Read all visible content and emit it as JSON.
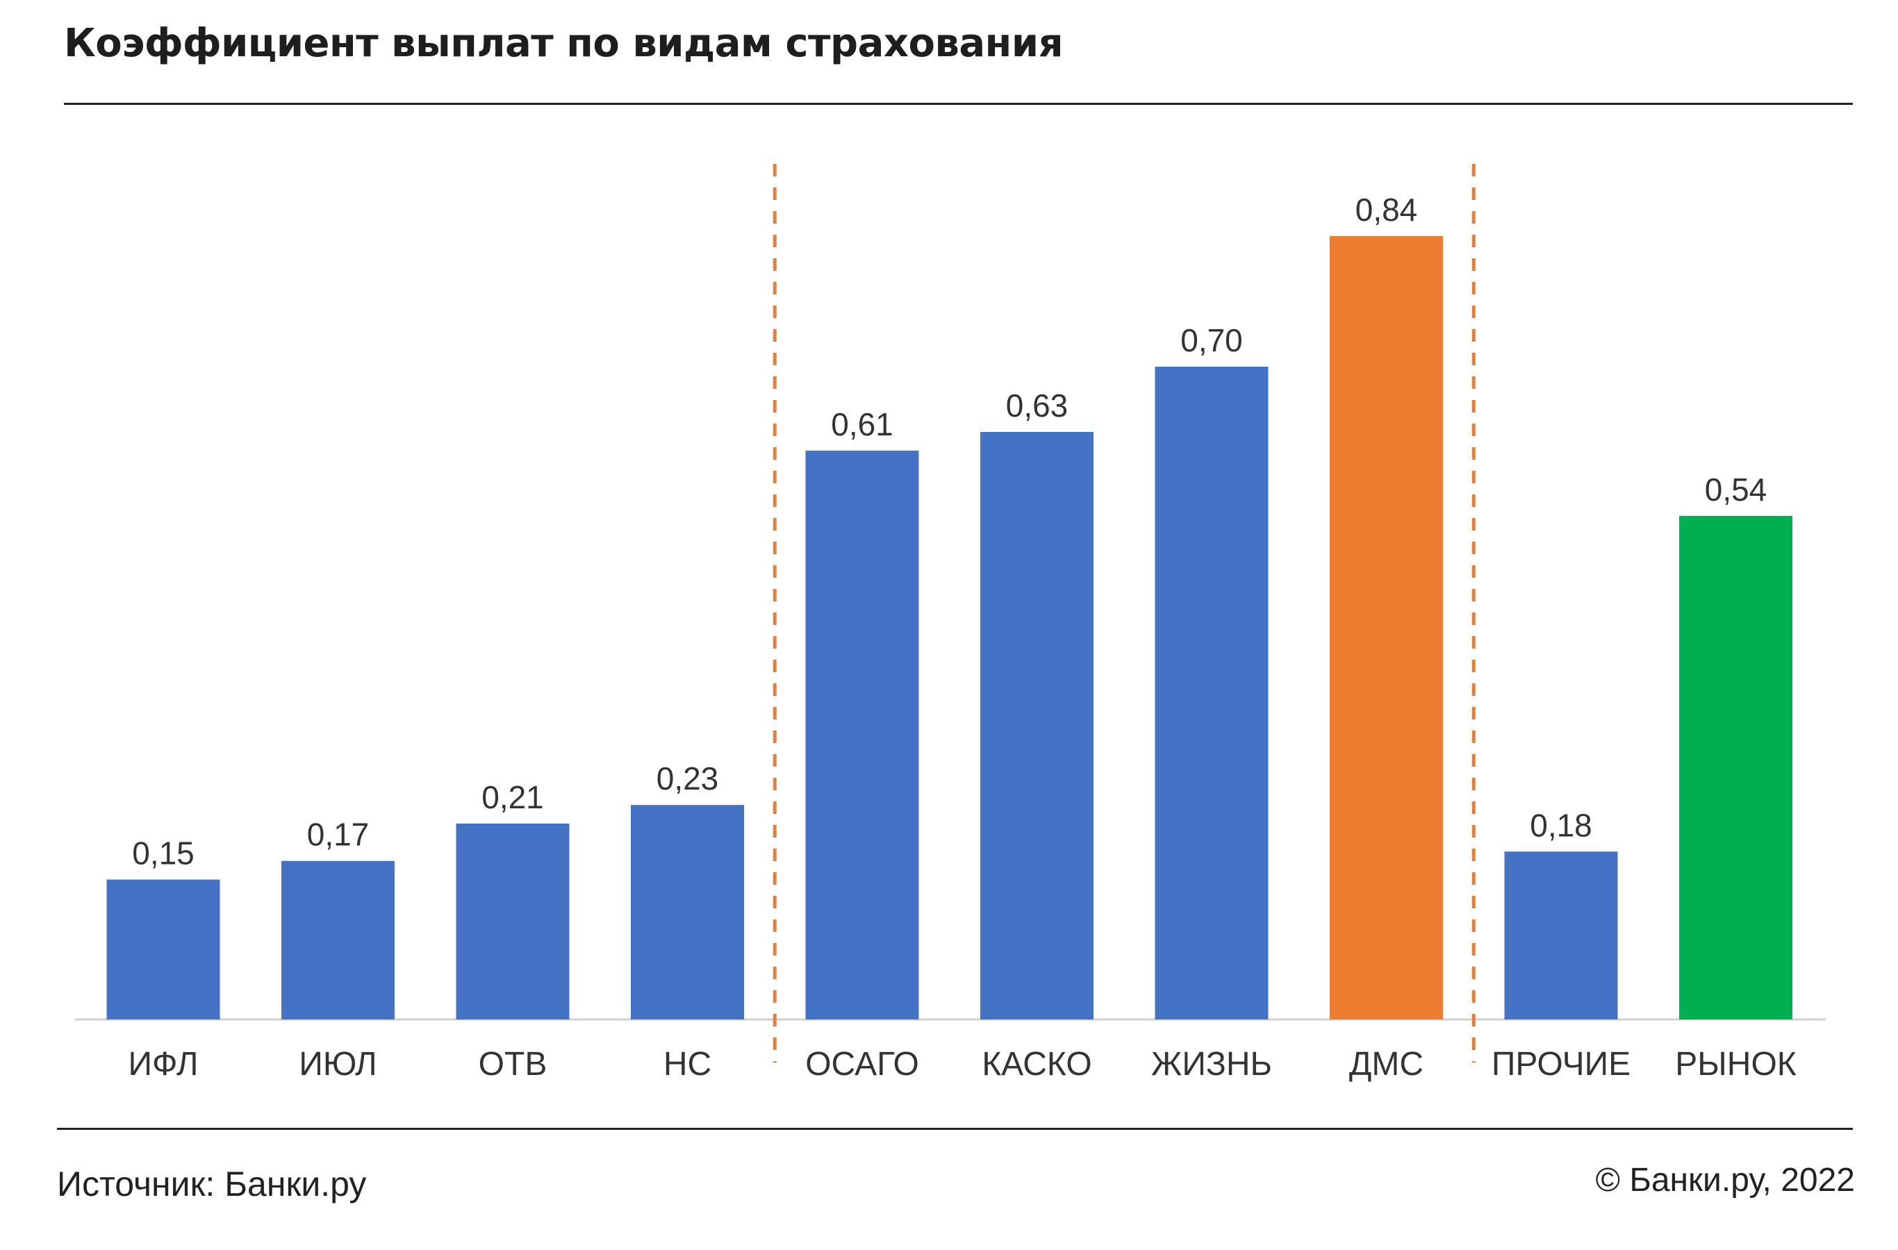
{
  "title": "Коэффициент выплат по видам страхования",
  "source": "Источник: Банки.ру",
  "copyright": "© Банки.ру, 2022",
  "chart_data": {
    "type": "bar",
    "title": "Коэффициент выплат по видам страхования",
    "categories": [
      "ИФЛ",
      "ИЮЛ",
      "ОТВ",
      "НС",
      "ОСАГО",
      "КАСКО",
      "ЖИЗНЬ",
      "ДМС",
      "ПРОЧИЕ",
      "РЫНОК"
    ],
    "values": [
      0.15,
      0.17,
      0.21,
      0.23,
      0.61,
      0.63,
      0.7,
      0.84,
      0.18,
      0.54
    ],
    "value_labels": [
      "0,15",
      "0,17",
      "0,21",
      "0,23",
      "0,61",
      "0,63",
      "0,70",
      "0,84",
      "0,18",
      "0,54"
    ],
    "ylim": [
      0,
      0.84
    ],
    "grid": false,
    "separators_after": [
      "НС",
      "ДМС"
    ],
    "colors": {
      "default": "#4472c4",
      "ДМС": "#ed7d31",
      "РЫНОК": "#00b050",
      "separator": "#ed7d31",
      "axis": "#d0d0d0",
      "text": "#333333"
    }
  }
}
